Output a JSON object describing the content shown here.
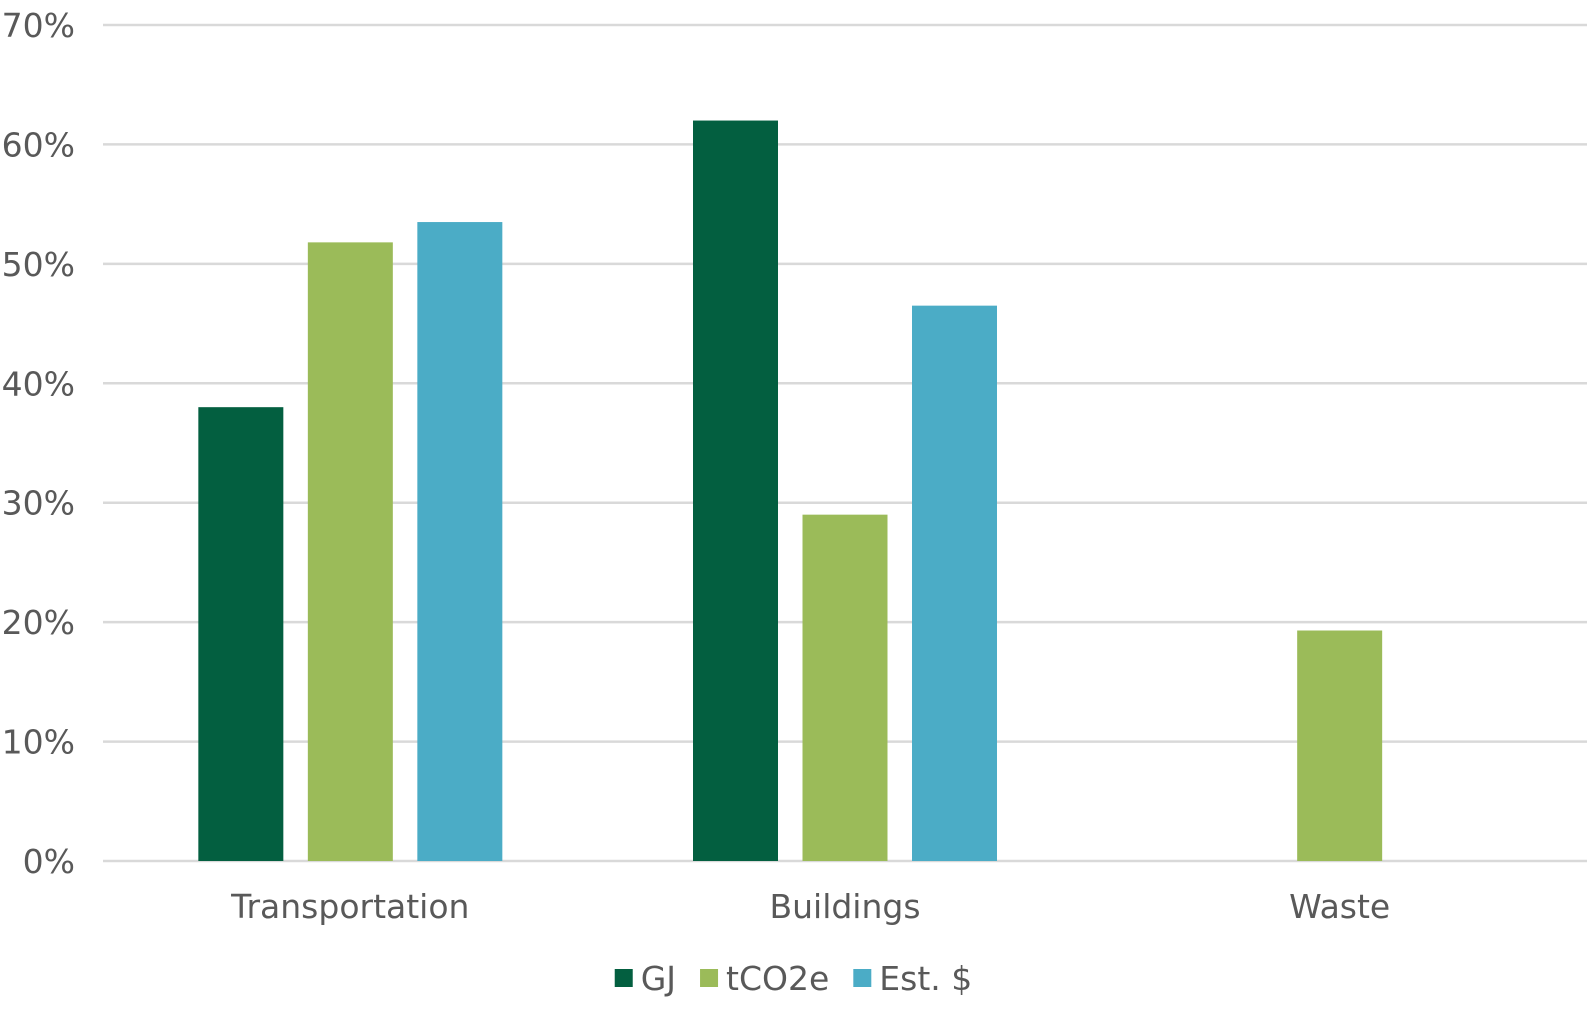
{
  "chart_data": {
    "type": "bar",
    "categories": [
      "Transportation",
      "Buildings",
      "Waste"
    ],
    "series": [
      {
        "name": "GJ",
        "color": "#035f40",
        "values": [
          38,
          62,
          0
        ]
      },
      {
        "name": "tCO2e",
        "color": "#9bbb59",
        "values": [
          51.8,
          29,
          19.3
        ]
      },
      {
        "name": "Est. $",
        "color": "#4bacc6",
        "values": [
          53.5,
          46.5,
          0
        ]
      }
    ],
    "ylim": [
      0,
      70
    ],
    "yticks": [
      0,
      10,
      20,
      30,
      40,
      50,
      60,
      70
    ],
    "ytick_labels": [
      "0%",
      "10%",
      "20%",
      "30%",
      "40%",
      "50%",
      "60%",
      "70%"
    ],
    "grid": true,
    "legend_position": "bottom",
    "gridline_color": "#d9d9d9"
  }
}
